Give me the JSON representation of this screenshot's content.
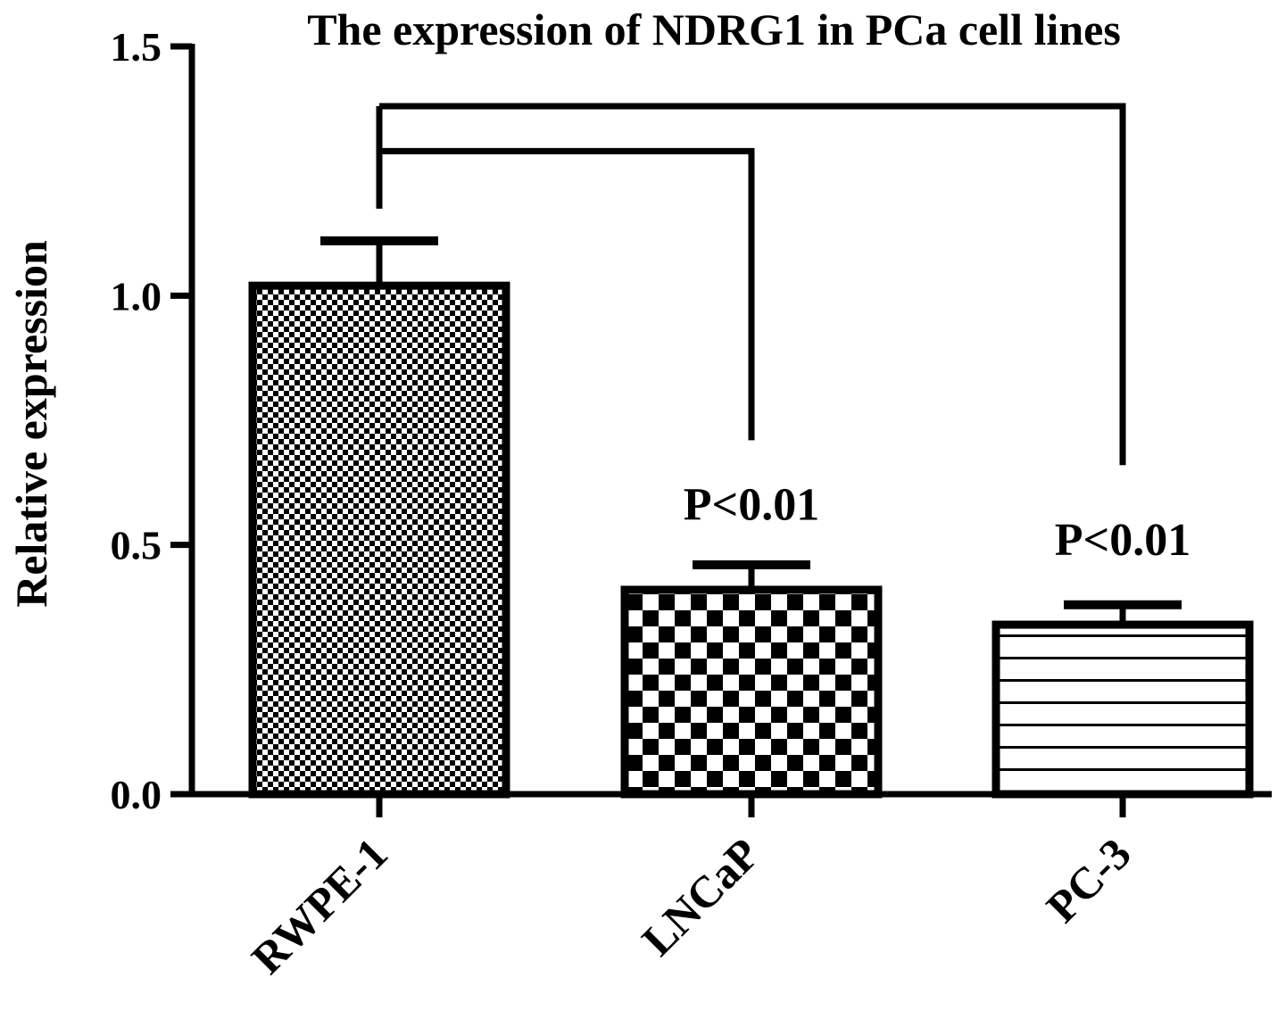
{
  "chart_data": {
    "type": "bar",
    "title": "The expression of NDRG1 in PCa cell lines",
    "xlabel": "",
    "ylabel": "Relative expression",
    "ylim": [
      0,
      1.5
    ],
    "yticks": [
      "0.0",
      "0.5",
      "1.0",
      "1.5"
    ],
    "ytick_values": [
      0,
      0.5,
      1.0,
      1.5
    ],
    "categories": [
      "RWPE-1",
      "LNCaP",
      "PC-3"
    ],
    "values": [
      1.02,
      0.41,
      0.34
    ],
    "errors": [
      0.09,
      0.05,
      0.04
    ],
    "patterns": [
      "fine-checker",
      "coarse-checker",
      "horizontal-stripes"
    ],
    "grid": false,
    "legend": "none",
    "comparisons": [
      {
        "from": "RWPE-1",
        "to": "LNCaP",
        "label": "P<0.01"
      },
      {
        "from": "RWPE-1",
        "to": "PC-3",
        "label": "P<0.01"
      }
    ]
  },
  "colors": {
    "bar_fill": "#ffffff",
    "bar_pattern": "#000000",
    "axis": "#000000"
  }
}
